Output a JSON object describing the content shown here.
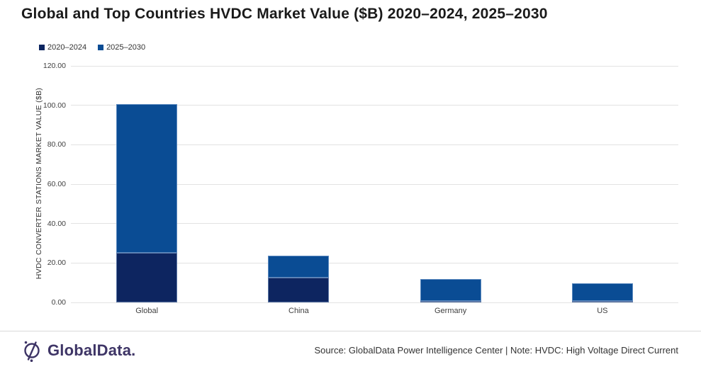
{
  "title": "Global and Top Countries HVDC Market Value ($B) 2020–2024, 2025–2030",
  "chart_data": {
    "type": "bar",
    "stacked": true,
    "categories": [
      "Global",
      "China",
      "Germany",
      "US"
    ],
    "series": [
      {
        "name": "2020–2024",
        "color": "#0d2560",
        "values": [
          25.0,
          12.5,
          0.8,
          0.5
        ]
      },
      {
        "name": "2025–2030",
        "color": "#0a4c94",
        "values": [
          75.5,
          11.2,
          11.1,
          8.9
        ]
      }
    ],
    "totals": [
      100.5,
      23.7,
      11.9,
      9.4
    ],
    "title": "Global and Top Countries HVDC Market Value ($B) 2020–2024, 2025–2030",
    "xlabel": "",
    "ylabel": "HVDC CONVERTER STATIONS MARKET VALUE ($B)",
    "ylim": [
      0,
      120
    ],
    "ytick_step": 20,
    "ytick_labels": [
      "0.00",
      "20.00",
      "40.00",
      "60.00",
      "80.00",
      "100.00",
      "120.00"
    ],
    "grid": true,
    "gridline_color": "#e2e2e2",
    "legend_position": "top-left"
  },
  "footer": {
    "logo_text": "GlobalData.",
    "logo_color": "#3e3566",
    "source_text": "Source: GlobalData Power Intelligence Center | Note: HVDC: High Voltage Direct Current"
  }
}
